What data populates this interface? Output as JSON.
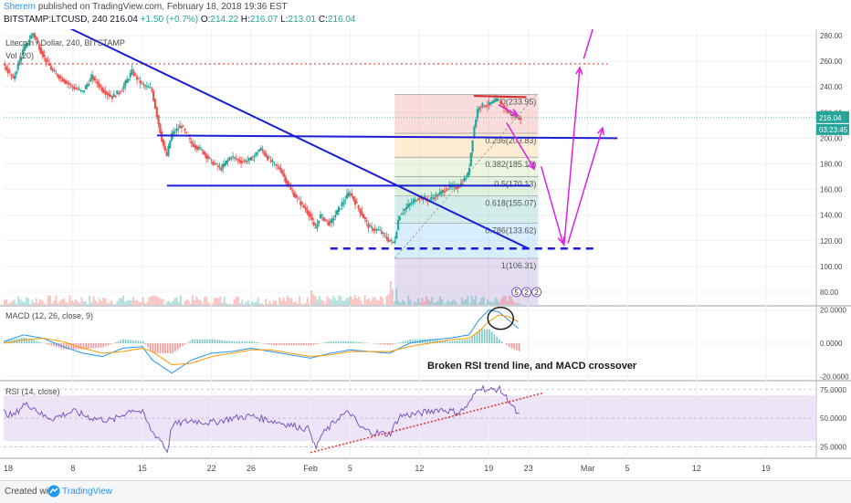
{
  "header": {
    "author": "Sherem",
    "published_text": "published on TradingView.com, February 18, 2018 19:36 EST",
    "symbol": "BITSTAMP:LTCUSD, 240",
    "last": "216.04",
    "change": "+1.50 (+0.7%)",
    "open_label": "O:",
    "open": "214.22",
    "high_label": "H:",
    "high": "216.07",
    "low_label": "L:",
    "low": "213.01",
    "close_label": "C:",
    "close": "216.04"
  },
  "footer": {
    "created_with": "Created with",
    "brand": "TradingView"
  },
  "colors": {
    "up": "#26a69a",
    "down": "#ef5350",
    "trendline": "#1a1fd6",
    "arrow": "#e020e0",
    "macd": "#2196f3",
    "signal": "#ff9800",
    "rsi": "#7e57c2",
    "rsi_band": "#ede4f7",
    "dotted_red": "#e53935"
  },
  "chart_data": [
    {
      "type": "candlestick",
      "title": "Litecoin / Dollar, 240, BITSTAMP",
      "volume_label": "Vol (20)",
      "y_ticks": [
        "280.00",
        "260.00",
        "240.00",
        "220.00",
        "200.00",
        "180.00",
        "160.00",
        "140.00",
        "120.00",
        "100.00",
        "80.00"
      ],
      "y_range": [
        70,
        285
      ],
      "x_ticks": [
        "8",
        "15",
        "22",
        "26",
        "Feb",
        "5",
        "12",
        "19",
        "23",
        "Mar",
        "5",
        "12",
        "19"
      ],
      "x_tick_days": [
        8,
        15,
        22,
        26,
        32,
        36,
        43,
        50,
        54,
        60,
        64,
        71,
        78
      ],
      "x_range_days": [
        1,
        83
      ],
      "anchors": [
        [
          1,
          258
        ],
        [
          2,
          246
        ],
        [
          3,
          268
        ],
        [
          4,
          282
        ],
        [
          5,
          265
        ],
        [
          6,
          252
        ],
        [
          7,
          246
        ],
        [
          8,
          240
        ],
        [
          9,
          236
        ],
        [
          10,
          248
        ],
        [
          11,
          238
        ],
        [
          12,
          232
        ],
        [
          13,
          238
        ],
        [
          14,
          252
        ],
        [
          15,
          242
        ],
        [
          16,
          238
        ],
        [
          17,
          200
        ],
        [
          17.5,
          185
        ],
        [
          18,
          203
        ],
        [
          19,
          210
        ],
        [
          20,
          196
        ],
        [
          21,
          191
        ],
        [
          22,
          182
        ],
        [
          23,
          176
        ],
        [
          24,
          186
        ],
        [
          25,
          182
        ],
        [
          26,
          183
        ],
        [
          27,
          192
        ],
        [
          28,
          182
        ],
        [
          29,
          176
        ],
        [
          30,
          160
        ],
        [
          31,
          150
        ],
        [
          32,
          140
        ],
        [
          32.5,
          128
        ],
        [
          33,
          140
        ],
        [
          34,
          133
        ],
        [
          35,
          146
        ],
        [
          36,
          158
        ],
        [
          37,
          144
        ],
        [
          38,
          130
        ],
        [
          39,
          128
        ],
        [
          40,
          120
        ],
        [
          40.5,
          118
        ],
        [
          41,
          140
        ],
        [
          42,
          148
        ],
        [
          43,
          154
        ],
        [
          44,
          152
        ],
        [
          45,
          156
        ],
        [
          46,
          162
        ],
        [
          47,
          162
        ],
        [
          48,
          172
        ],
        [
          48.5,
          205
        ],
        [
          49,
          225
        ],
        [
          50,
          226
        ],
        [
          51,
          230
        ],
        [
          52,
          220
        ],
        [
          53,
          216
        ]
      ],
      "last_price": "216.04",
      "countdown": "03:23:45",
      "fib_levels": [
        {
          "ratio": "0",
          "price": 233.95,
          "label": "0(233.95)"
        },
        {
          "ratio": "0.236",
          "price": 203.83,
          "label": "0.236(203.83)"
        },
        {
          "ratio": "0.382",
          "price": 185.19,
          "label": "0.382(185.19)"
        },
        {
          "ratio": "0.5",
          "price": 170.13,
          "label": "0.5(170.13)"
        },
        {
          "ratio": "0.618",
          "price": 155.07,
          "label": "0.618(155.07)"
        },
        {
          "ratio": "0.786",
          "price": 133.62,
          "label": "0.786(133.62)"
        },
        {
          "ratio": "1",
          "price": 106.31,
          "label": "1(106.31)"
        }
      ],
      "drawings": {
        "resistance_dotted": 258,
        "support_upper": 205,
        "support_middle": 163,
        "support_dashed": 114,
        "downtrend_from": [
          6,
          292
        ],
        "downtrend_to": [
          54,
          114
        ]
      },
      "events": [
        "5",
        "2",
        "2"
      ]
    },
    {
      "type": "line",
      "title": "MACD (12, 26, close, 9)",
      "y_ticks": [
        "20.0000",
        "0.0000",
        "-20.0000"
      ],
      "y_range": [
        -22,
        22
      ],
      "series": [
        {
          "name": "MACD",
          "anchors": [
            [
              1,
              1
            ],
            [
              3,
              5
            ],
            [
              5,
              3
            ],
            [
              7,
              -2
            ],
            [
              9,
              -6
            ],
            [
              11,
              -8
            ],
            [
              13,
              -3
            ],
            [
              15,
              -2
            ],
            [
              16,
              -10
            ],
            [
              17,
              -14
            ],
            [
              18,
              -18
            ],
            [
              20,
              -10
            ],
            [
              22,
              -6
            ],
            [
              24,
              -5
            ],
            [
              26,
              -3
            ],
            [
              28,
              -5
            ],
            [
              30,
              -7
            ],
            [
              32,
              -9
            ],
            [
              34,
              -6
            ],
            [
              36,
              -4
            ],
            [
              38,
              -5
            ],
            [
              40,
              -6
            ],
            [
              42,
              0
            ],
            [
              44,
              2
            ],
            [
              46,
              3
            ],
            [
              48,
              5
            ],
            [
              49,
              14
            ],
            [
              50,
              20
            ],
            [
              51,
              19
            ],
            [
              52,
              14
            ],
            [
              53,
              9
            ]
          ]
        },
        {
          "name": "Signal",
          "anchors": [
            [
              1,
              0
            ],
            [
              3,
              2
            ],
            [
              5,
              3
            ],
            [
              7,
              1
            ],
            [
              9,
              -3
            ],
            [
              11,
              -6
            ],
            [
              13,
              -5
            ],
            [
              15,
              -3
            ],
            [
              16,
              -5
            ],
            [
              17,
              -9
            ],
            [
              18,
              -13
            ],
            [
              20,
              -12
            ],
            [
              22,
              -8
            ],
            [
              24,
              -6
            ],
            [
              26,
              -4
            ],
            [
              28,
              -4
            ],
            [
              30,
              -6
            ],
            [
              32,
              -8
            ],
            [
              34,
              -7
            ],
            [
              36,
              -5
            ],
            [
              38,
              -5
            ],
            [
              40,
              -5
            ],
            [
              42,
              -2
            ],
            [
              44,
              0
            ],
            [
              46,
              2
            ],
            [
              48,
              3
            ],
            [
              49,
              7
            ],
            [
              50,
              13
            ],
            [
              51,
              17
            ],
            [
              52,
              16
            ],
            [
              53,
              13
            ]
          ]
        }
      ],
      "annotation": "Broken RSI trend line, and MACD crossover"
    },
    {
      "type": "line",
      "title": "RSI (14, close)",
      "y_ticks": [
        "75.0000",
        "50.0000",
        "25.0000"
      ],
      "y_range": [
        15,
        82
      ],
      "band": [
        30,
        70
      ],
      "series": [
        {
          "name": "RSI",
          "anchors": [
            [
              1,
              55
            ],
            [
              2,
              52
            ],
            [
              3,
              62
            ],
            [
              4,
              60
            ],
            [
              5,
              52
            ],
            [
              6,
              50
            ],
            [
              8,
              56
            ],
            [
              10,
              50
            ],
            [
              12,
              48
            ],
            [
              14,
              58
            ],
            [
              15,
              55
            ],
            [
              16,
              38
            ],
            [
              17,
              30
            ],
            [
              17.5,
              20
            ],
            [
              18,
              44
            ],
            [
              20,
              48
            ],
            [
              22,
              46
            ],
            [
              24,
              50
            ],
            [
              26,
              52
            ],
            [
              28,
              48
            ],
            [
              30,
              44
            ],
            [
              32,
              40
            ],
            [
              32.5,
              22
            ],
            [
              33,
              34
            ],
            [
              35,
              52
            ],
            [
              36,
              55
            ],
            [
              37,
              42
            ],
            [
              38,
              38
            ],
            [
              40,
              36
            ],
            [
              41,
              52
            ],
            [
              43,
              54
            ],
            [
              45,
              58
            ],
            [
              47,
              55
            ],
            [
              48,
              62
            ],
            [
              49,
              78
            ],
            [
              50,
              74
            ],
            [
              51,
              76
            ],
            [
              52,
              66
            ],
            [
              53,
              52
            ]
          ]
        }
      ]
    }
  ]
}
